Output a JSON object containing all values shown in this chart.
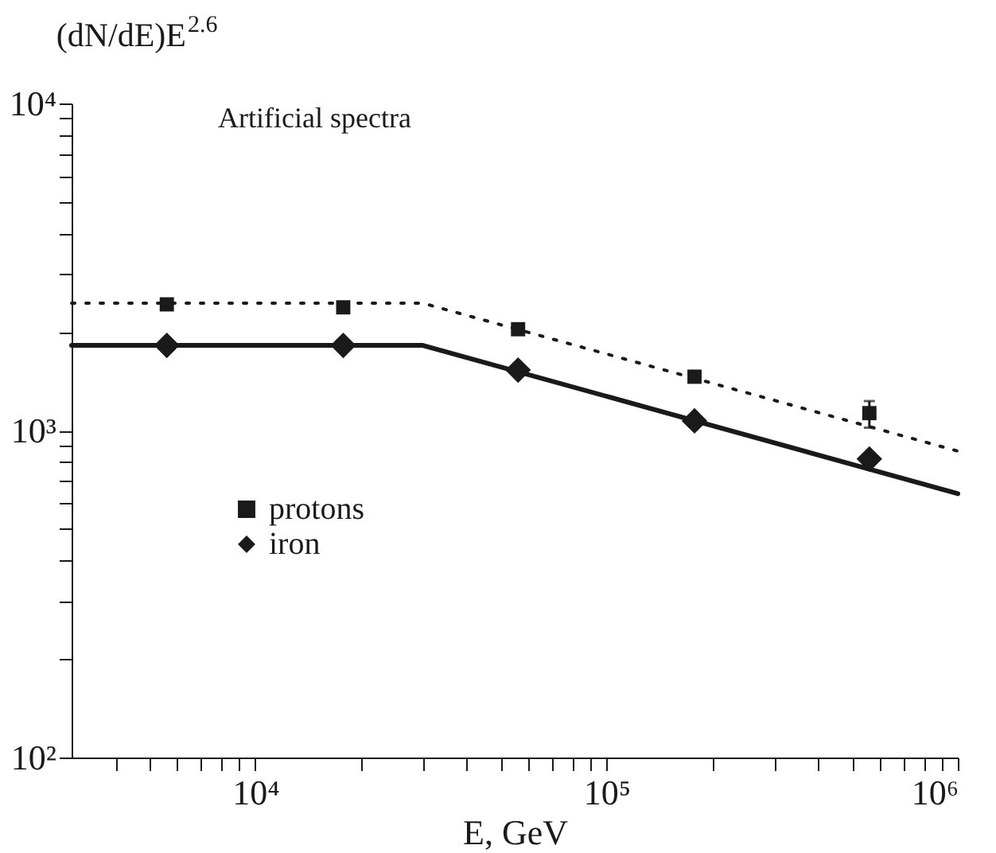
{
  "chart_data": {
    "type": "scatter",
    "xlabel": "E, GeV",
    "ylabel": "(dN/dE)E$^{2.6}$",
    "annotations": [
      "Artificial spectra"
    ],
    "log": "xy",
    "grid": false,
    "legend": "left",
    "xlim": [
      3000,
      1000000
    ],
    "ylim": [
      100,
      10000
    ],
    "xticks": [
      {
        "value": 4000,
        "label": null
      },
      {
        "value": 5000,
        "label": null
      },
      {
        "value": 6000,
        "label": null
      },
      {
        "value": 7000,
        "label": null
      },
      {
        "value": 8000,
        "label": null
      },
      {
        "value": 9000,
        "label": null
      },
      {
        "value": 10000,
        "label": "10⁴"
      },
      {
        "value": 20000,
        "label": null
      },
      {
        "value": 30000,
        "label": null
      },
      {
        "value": 40000,
        "label": null
      },
      {
        "value": 50000,
        "label": null
      },
      {
        "value": 60000,
        "label": null
      },
      {
        "value": 70000,
        "label": null
      },
      {
        "value": 80000,
        "label": null
      },
      {
        "value": 90000,
        "label": null
      },
      {
        "value": 100000,
        "label": "10⁵"
      },
      {
        "value": 200000,
        "label": null
      },
      {
        "value": 300000,
        "label": null
      },
      {
        "value": 400000,
        "label": null
      },
      {
        "value": 500000,
        "label": null
      },
      {
        "value": 600000,
        "label": null
      },
      {
        "value": 700000,
        "label": null
      },
      {
        "value": 800000,
        "label": null
      },
      {
        "value": 900000,
        "label": null
      },
      {
        "value": 1000000,
        "label": "10⁶"
      }
    ],
    "yticks": [
      {
        "value": 100,
        "label": "10²"
      },
      {
        "value": 200,
        "label": null
      },
      {
        "value": 300,
        "label": null
      },
      {
        "value": 400,
        "label": null
      },
      {
        "value": 500,
        "label": null
      },
      {
        "value": 600,
        "label": null
      },
      {
        "value": 700,
        "label": null
      },
      {
        "value": 800,
        "label": null
      },
      {
        "value": 900,
        "label": null
      },
      {
        "value": 1000,
        "label": "10³"
      },
      {
        "value": 2000,
        "label": null
      },
      {
        "value": 3000,
        "label": null
      },
      {
        "value": 4000,
        "label": null
      },
      {
        "value": 5000,
        "label": null
      },
      {
        "value": 6000,
        "label": null
      },
      {
        "value": 7000,
        "label": null
      },
      {
        "value": 8000,
        "label": null
      },
      {
        "value": 9000,
        "label": null
      },
      {
        "value": 10000,
        "label": "10⁴"
      }
    ],
    "series": [
      {
        "type": "line",
        "line_style": "dotted",
        "marker": "none",
        "color": "#1a1a1a",
        "x": [
          3000,
          30000,
          1000000
        ],
        "values": [
          2450,
          2450,
          865
        ]
      },
      {
        "type": "line",
        "line_style": "solid",
        "marker": "none",
        "color": "#1a1a1a",
        "x": [
          3000,
          30000,
          1000000
        ],
        "values": [
          1820,
          1820,
          641
        ]
      },
      {
        "name": "protons",
        "marker": "square",
        "color": "#1a1a1a",
        "x": [
          5600,
          17800,
          56000,
          178000,
          560000
        ],
        "values": [
          2430,
          2380,
          2040,
          1460,
          1130
        ],
        "errors": [
          null,
          null,
          null,
          [
            1410,
            1520
          ],
          [
            1020,
            1230
          ]
        ]
      },
      {
        "name": "iron",
        "marker": "diamond",
        "color": "#1a1a1a",
        "x": [
          5600,
          17800,
          56000,
          178000,
          560000
        ],
        "values": [
          1820,
          1820,
          1530,
          1070,
          818
        ]
      }
    ]
  }
}
